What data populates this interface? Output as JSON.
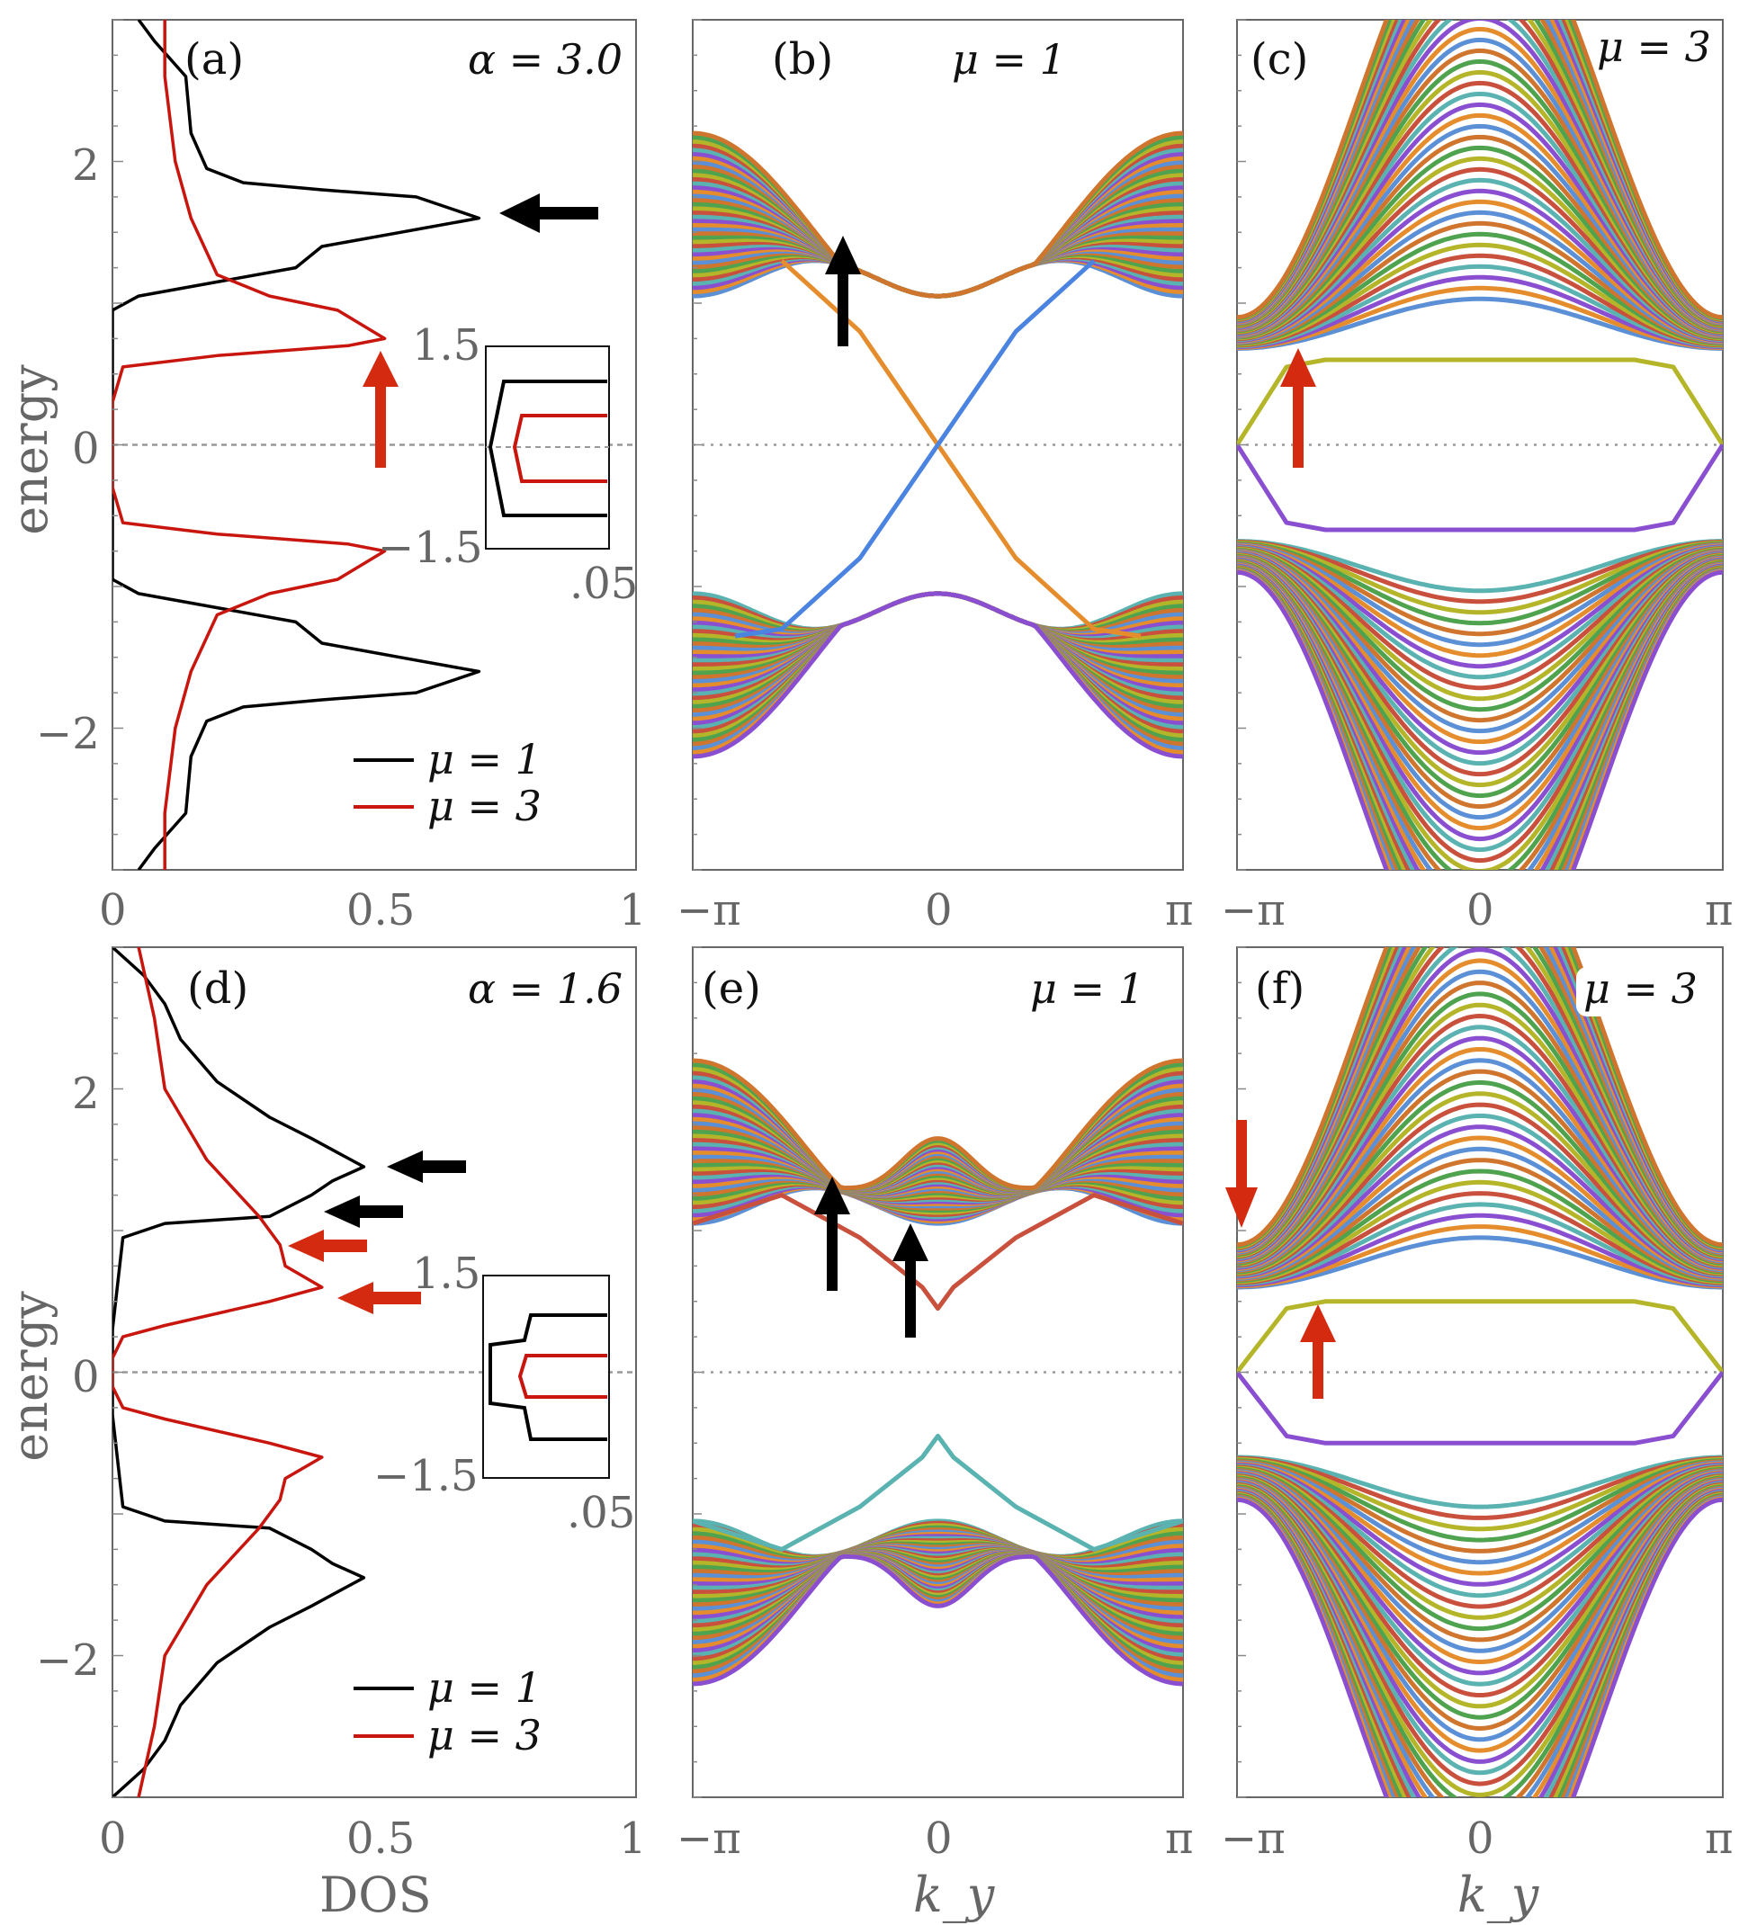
{
  "figure": {
    "panels": [
      {
        "id": "a",
        "label": "(a)",
        "annotation": "α = 3.0",
        "kind": "dos"
      },
      {
        "id": "b",
        "label": "(b)",
        "annotation": "μ = 1",
        "kind": "bands"
      },
      {
        "id": "c",
        "label": "(c)",
        "annotation": "μ = 3",
        "kind": "bands"
      },
      {
        "id": "d",
        "label": "(d)",
        "annotation": "α = 1.6",
        "kind": "dos"
      },
      {
        "id": "e",
        "label": "(e)",
        "annotation": "μ = 1",
        "kind": "bands"
      },
      {
        "id": "f",
        "label": "(f)",
        "annotation": "μ = 3",
        "kind": "bands"
      }
    ],
    "y_axis_title": "energy",
    "dos_axis_title": "DOS",
    "ky_axis_title": "k_y",
    "dos_ticks": [
      "0",
      "0.5",
      "1"
    ],
    "energy_ticks": [
      "2",
      "0",
      "−2"
    ],
    "ky_ticks": [
      "−π",
      "0",
      "π"
    ],
    "inset_ticks": {
      "top": "1.5",
      "bottom": "−1.5",
      "x": ".05"
    },
    "legend": [
      {
        "label": "μ = 1",
        "color": "#000000"
      },
      {
        "label": "μ = 3",
        "color": "#c8160e"
      }
    ],
    "arrow_colors": {
      "black": "#000000",
      "red": "#d42a10"
    }
  },
  "chart_data": [
    {
      "panel": "a",
      "type": "line",
      "title": "(a) α = 3.0",
      "xlabel": "",
      "ylabel": "energy",
      "xlim": [
        0,
        1
      ],
      "ylim": [
        -3,
        3
      ],
      "series": [
        {
          "name": "μ = 1",
          "color": "#000000",
          "points": [
            [
              0.05,
              3.0
            ],
            [
              0.08,
              2.85
            ],
            [
              0.14,
              2.6
            ],
            [
              0.15,
              2.2
            ],
            [
              0.18,
              1.95
            ],
            [
              0.25,
              1.85
            ],
            [
              0.4,
              1.8
            ],
            [
              0.58,
              1.75
            ],
            [
              0.7,
              1.6
            ],
            [
              0.55,
              1.5
            ],
            [
              0.4,
              1.4
            ],
            [
              0.35,
              1.25
            ],
            [
              0.2,
              1.15
            ],
            [
              0.05,
              1.05
            ],
            [
              0.0,
              0.95
            ],
            [
              0.0,
              -0.95
            ],
            [
              0.05,
              -1.05
            ],
            [
              0.2,
              -1.15
            ],
            [
              0.35,
              -1.25
            ],
            [
              0.4,
              -1.4
            ],
            [
              0.55,
              -1.5
            ],
            [
              0.7,
              -1.6
            ],
            [
              0.58,
              -1.75
            ],
            [
              0.4,
              -1.8
            ],
            [
              0.25,
              -1.85
            ],
            [
              0.18,
              -1.95
            ],
            [
              0.15,
              -2.2
            ],
            [
              0.14,
              -2.6
            ],
            [
              0.08,
              -2.85
            ],
            [
              0.05,
              -3.0
            ]
          ]
        },
        {
          "name": "μ = 3",
          "color": "#c8160e",
          "points": [
            [
              0.1,
              3.0
            ],
            [
              0.1,
              2.6
            ],
            [
              0.12,
              2.0
            ],
            [
              0.15,
              1.6
            ],
            [
              0.2,
              1.2
            ],
            [
              0.3,
              1.05
            ],
            [
              0.43,
              0.95
            ],
            [
              0.52,
              0.75
            ],
            [
              0.45,
              0.7
            ],
            [
              0.2,
              0.63
            ],
            [
              0.02,
              0.55
            ],
            [
              0.0,
              0.3
            ],
            [
              0.0,
              -0.3
            ],
            [
              0.02,
              -0.55
            ],
            [
              0.2,
              -0.63
            ],
            [
              0.45,
              -0.7
            ],
            [
              0.52,
              -0.75
            ],
            [
              0.43,
              -0.95
            ],
            [
              0.3,
              -1.05
            ],
            [
              0.2,
              -1.2
            ],
            [
              0.15,
              -1.6
            ],
            [
              0.12,
              -2.0
            ],
            [
              0.1,
              -2.6
            ],
            [
              0.1,
              -3.0
            ]
          ]
        }
      ]
    },
    {
      "panel": "b",
      "type": "line",
      "title": "(b) μ = 1",
      "xlabel": "",
      "ylabel": "",
      "xlim": [
        -3.1416,
        3.1416
      ],
      "ylim": [
        -3,
        3
      ],
      "bands": {
        "edge_shape": "mu1",
        "gap": 1.05,
        "count": 40
      },
      "edge_states": [
        {
          "name": "orange",
          "color": "#e58d2c",
          "points": [
            [
              -2.0,
              1.3
            ],
            [
              -1.0,
              0.8
            ],
            [
              0,
              0
            ],
            [
              1.0,
              -0.8
            ],
            [
              2.0,
              -1.3
            ],
            [
              2.6,
              -1.35
            ]
          ]
        },
        {
          "name": "blue",
          "color": "#4a83e0",
          "points": [
            [
              -2.6,
              -1.35
            ],
            [
              -2.0,
              -1.3
            ],
            [
              -1.0,
              -0.8
            ],
            [
              0,
              0
            ],
            [
              1.0,
              0.8
            ],
            [
              2.0,
              1.3
            ]
          ]
        }
      ]
    },
    {
      "panel": "c",
      "type": "line",
      "title": "(c) μ = 3",
      "xlabel": "",
      "ylabel": "",
      "xlim": [
        -3.1416,
        3.1416
      ],
      "ylim": [
        -3,
        3
      ],
      "bands": {
        "edge_shape": "mu3",
        "gap": 0.58,
        "count": 40
      },
      "edge_states": [
        {
          "name": "olive",
          "color": "#b5b52a",
          "points": [
            [
              -3.14,
              0
            ],
            [
              -2.5,
              0.55
            ],
            [
              -2.0,
              0.6
            ],
            [
              0,
              0.6
            ],
            [
              2.0,
              0.6
            ],
            [
              2.5,
              0.55
            ],
            [
              3.14,
              0
            ]
          ]
        },
        {
          "name": "purple",
          "color": "#8a4fd0",
          "points": [
            [
              -3.14,
              0
            ],
            [
              -2.5,
              -0.55
            ],
            [
              -2.0,
              -0.6
            ],
            [
              0,
              -0.6
            ],
            [
              2.0,
              -0.6
            ],
            [
              2.5,
              -0.55
            ],
            [
              3.14,
              0
            ]
          ]
        }
      ]
    },
    {
      "panel": "d",
      "type": "line",
      "title": "(d) α = 1.6",
      "xlabel": "DOS",
      "ylabel": "energy",
      "xlim": [
        0,
        1
      ],
      "ylim": [
        -3,
        3
      ],
      "series": [
        {
          "name": "μ = 1",
          "color": "#000000",
          "points": [
            [
              0.0,
              3.0
            ],
            [
              0.06,
              2.8
            ],
            [
              0.1,
              2.6
            ],
            [
              0.13,
              2.35
            ],
            [
              0.2,
              2.05
            ],
            [
              0.3,
              1.8
            ],
            [
              0.38,
              1.65
            ],
            [
              0.48,
              1.45
            ],
            [
              0.42,
              1.35
            ],
            [
              0.38,
              1.25
            ],
            [
              0.3,
              1.1
            ],
            [
              0.1,
              1.05
            ],
            [
              0.02,
              0.95
            ],
            [
              0.0,
              0.3
            ],
            [
              0.0,
              -0.3
            ],
            [
              0.02,
              -0.95
            ],
            [
              0.1,
              -1.05
            ],
            [
              0.3,
              -1.1
            ],
            [
              0.38,
              -1.25
            ],
            [
              0.42,
              -1.35
            ],
            [
              0.48,
              -1.45
            ],
            [
              0.38,
              -1.65
            ],
            [
              0.3,
              -1.8
            ],
            [
              0.2,
              -2.05
            ],
            [
              0.13,
              -2.35
            ],
            [
              0.1,
              -2.6
            ],
            [
              0.06,
              -2.8
            ],
            [
              0.0,
              -3.0
            ]
          ]
        },
        {
          "name": "μ = 3",
          "color": "#c8160e",
          "points": [
            [
              0.05,
              3.0
            ],
            [
              0.08,
              2.5
            ],
            [
              0.1,
              2.0
            ],
            [
              0.18,
              1.5
            ],
            [
              0.28,
              1.1
            ],
            [
              0.32,
              0.9
            ],
            [
              0.33,
              0.75
            ],
            [
              0.4,
              0.6
            ],
            [
              0.3,
              0.5
            ],
            [
              0.1,
              0.33
            ],
            [
              0.02,
              0.25
            ],
            [
              0.0,
              0.1
            ],
            [
              0.0,
              -0.1
            ],
            [
              0.02,
              -0.25
            ],
            [
              0.1,
              -0.33
            ],
            [
              0.3,
              -0.5
            ],
            [
              0.4,
              -0.6
            ],
            [
              0.33,
              -0.75
            ],
            [
              0.32,
              -0.9
            ],
            [
              0.28,
              -1.1
            ],
            [
              0.18,
              -1.5
            ],
            [
              0.1,
              -2.0
            ],
            [
              0.08,
              -2.5
            ],
            [
              0.05,
              -3.0
            ]
          ]
        }
      ]
    },
    {
      "panel": "e",
      "type": "line",
      "title": "(e) μ = 1",
      "xlabel": "k_y",
      "ylabel": "",
      "xlim": [
        -3.1416,
        3.1416
      ],
      "ylim": [
        -3,
        3
      ],
      "bands": {
        "edge_shape": "mu1b",
        "gap": 1.05,
        "count": 40
      },
      "edge_states": [
        {
          "name": "red",
          "color": "#c8503c",
          "points": [
            [
              -3.14,
              1.05
            ],
            [
              -2.0,
              1.25
            ],
            [
              -1.0,
              0.95
            ],
            [
              -0.2,
              0.6
            ],
            [
              0,
              0.45
            ],
            [
              0.2,
              0.6
            ],
            [
              1.0,
              0.95
            ],
            [
              2.0,
              1.25
            ],
            [
              3.14,
              1.05
            ]
          ]
        },
        {
          "name": "teal",
          "color": "#5ab3b0",
          "points": [
            [
              -3.14,
              -1.05
            ],
            [
              -2.0,
              -1.25
            ],
            [
              -1.0,
              -0.95
            ],
            [
              -0.2,
              -0.6
            ],
            [
              0,
              -0.45
            ],
            [
              0.2,
              -0.6
            ],
            [
              1.0,
              -0.95
            ],
            [
              2.0,
              -1.25
            ],
            [
              3.14,
              -1.05
            ]
          ]
        }
      ]
    },
    {
      "panel": "f",
      "type": "line",
      "title": "(f) μ = 3",
      "xlabel": "k_y",
      "ylabel": "",
      "xlim": [
        -3.1416,
        3.1416
      ],
      "ylim": [
        -3,
        3
      ],
      "bands": {
        "edge_shape": "mu3",
        "gap": 0.5,
        "count": 40
      },
      "edge_states": [
        {
          "name": "olive",
          "color": "#b5b52a",
          "points": [
            [
              -3.14,
              0
            ],
            [
              -2.5,
              0.45
            ],
            [
              -2.0,
              0.5
            ],
            [
              0,
              0.5
            ],
            [
              2.0,
              0.5
            ],
            [
              2.5,
              0.45
            ],
            [
              3.14,
              0
            ]
          ]
        },
        {
          "name": "purple",
          "color": "#8a4fd0",
          "points": [
            [
              -3.14,
              0
            ],
            [
              -2.5,
              -0.45
            ],
            [
              -2.0,
              -0.5
            ],
            [
              0,
              -0.5
            ],
            [
              2.0,
              -0.5
            ],
            [
              2.5,
              -0.45
            ],
            [
              3.14,
              0
            ]
          ]
        }
      ]
    }
  ]
}
